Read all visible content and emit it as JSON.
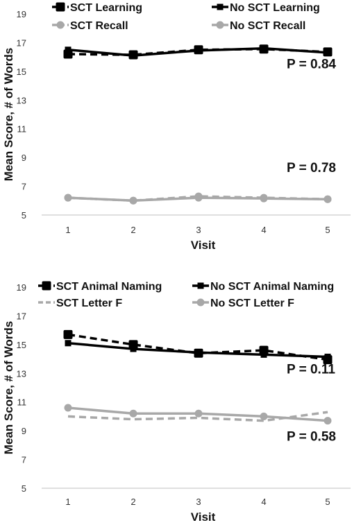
{
  "chart_data": [
    {
      "type": "line",
      "title": "",
      "xlabel": "Visit",
      "ylabel": "Mean Score, # of Words",
      "x": [
        1,
        2,
        3,
        4,
        5
      ],
      "ylim": [
        5,
        19
      ],
      "yticks": [
        5,
        7,
        9,
        11,
        13,
        15,
        17,
        19
      ],
      "grid": false,
      "legend": "top",
      "series": [
        {
          "name": "SCT Learning",
          "values": [
            16.2,
            16.15,
            16.5,
            16.55,
            16.35
          ],
          "color": "#000000",
          "dash": "dashed",
          "marker": "square"
        },
        {
          "name": "No SCT Learning",
          "values": [
            16.5,
            16.1,
            16.45,
            16.6,
            16.3
          ],
          "color": "#000000",
          "dash": "solid",
          "marker": "square-small"
        },
        {
          "name": "SCT Recall",
          "values": [
            6.2,
            6.0,
            6.3,
            6.2,
            6.1
          ],
          "color": "#a8a8a8",
          "dash": "dashed",
          "marker": "circle"
        },
        {
          "name": "No SCT Recall",
          "values": [
            6.2,
            6.0,
            6.2,
            6.15,
            6.1
          ],
          "color": "#a8a8a8",
          "dash": "solid",
          "marker": "circle"
        }
      ],
      "annotations": [
        {
          "text": "P = 0.84",
          "x": 4.7,
          "y": 15.2
        },
        {
          "text": "P = 0.78",
          "x": 4.7,
          "y": 8.0
        }
      ]
    },
    {
      "type": "line",
      "title": "",
      "xlabel": "Visit",
      "ylabel": "Mean Score, # of Words",
      "x": [
        1,
        2,
        3,
        4,
        5
      ],
      "ylim": [
        5,
        19
      ],
      "yticks": [
        5,
        7,
        9,
        11,
        13,
        15,
        17,
        19
      ],
      "grid": false,
      "legend": "top",
      "series": [
        {
          "name": "SCT Animal Naming",
          "values": [
            15.7,
            15.0,
            14.4,
            14.6,
            13.95
          ],
          "color": "#000000",
          "dash": "dashed",
          "marker": "square"
        },
        {
          "name": "No SCT Animal Naming",
          "values": [
            15.1,
            14.7,
            14.45,
            14.3,
            14.15
          ],
          "color": "#000000",
          "dash": "solid",
          "marker": "square-small"
        },
        {
          "name": "SCT Letter F",
          "values": [
            10.0,
            9.8,
            9.9,
            9.7,
            10.3
          ],
          "color": "#a8a8a8",
          "dash": "dashed",
          "marker": "none"
        },
        {
          "name": "No SCT Letter F",
          "values": [
            10.6,
            10.2,
            10.2,
            10.0,
            9.7
          ],
          "color": "#a8a8a8",
          "dash": "solid",
          "marker": "circle"
        }
      ],
      "annotations": [
        {
          "text": "P = 0.11",
          "x": 4.7,
          "y": 13.0
        },
        {
          "text": "P = 0.58",
          "x": 4.7,
          "y": 8.3
        }
      ]
    }
  ]
}
